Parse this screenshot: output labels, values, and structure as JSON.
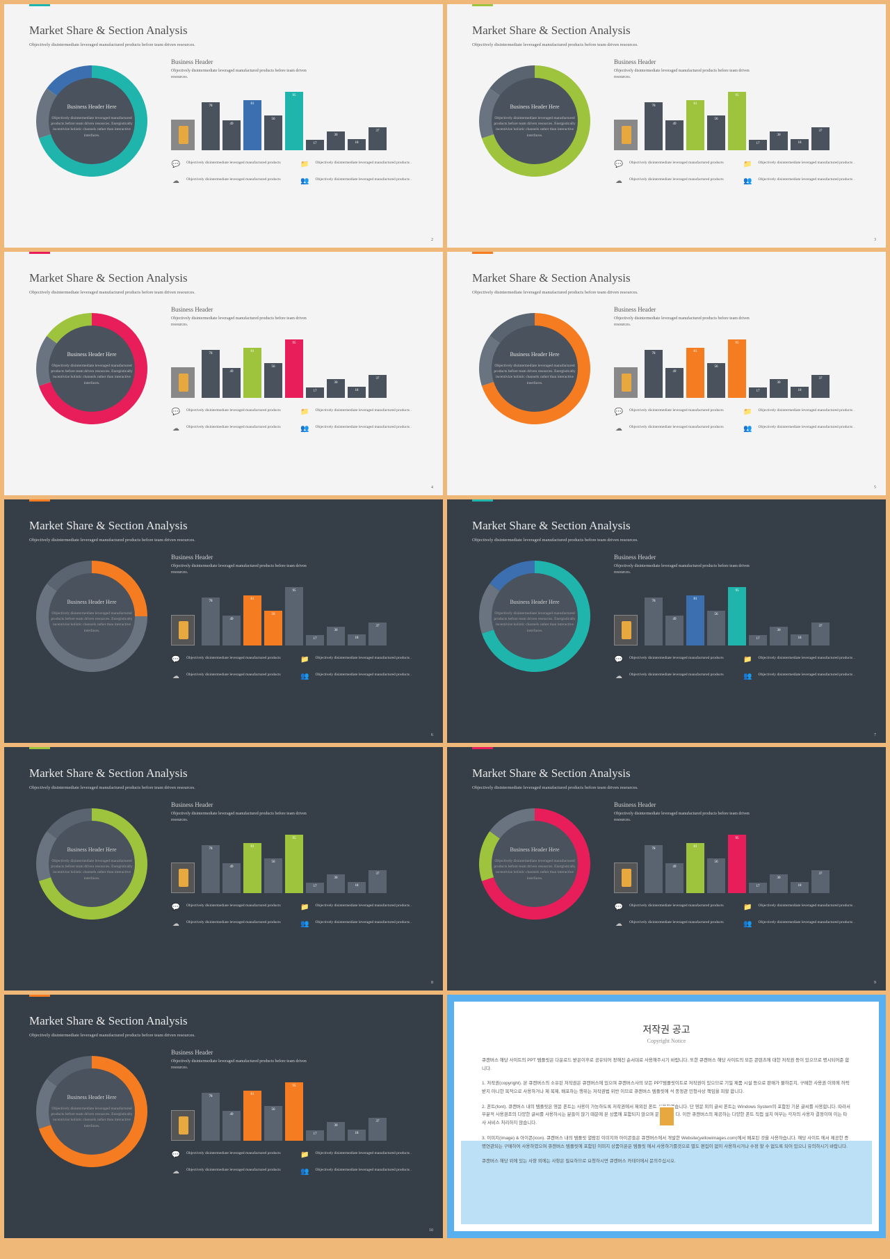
{
  "common": {
    "title": "Market Share & Section Analysis",
    "subtitle": "Objectively disintermediate leveraged manufactured products before team driven resources.",
    "business_header": "Business Header",
    "bh_sub": "Objectively disintermediate leveraged manufactured products before team driven resources.",
    "donut_title": "Business Header Here",
    "donut_text": "Objectively disintermediate leveraged manufactured products before team driven resources. Energistically incentivize holistic channels rather than interactive interfaces.",
    "feat_text": "Objectively disintermediate leveraged manufactured products",
    "feat_alt": "Objectively disintermediate leveraged manufactured products ."
  },
  "chart": {
    "labels": [
      "78",
      "49",
      "81",
      "56",
      "95",
      "17",
      "30",
      "18",
      "37"
    ],
    "values": [
      78,
      49,
      81,
      56,
      95,
      17,
      30,
      18,
      37
    ],
    "ymax": 100
  },
  "slides": [
    {
      "theme": "light",
      "accent": "#1fb5ad",
      "page": "2",
      "donut": {
        "fill": "#4a535d",
        "seg": [
          {
            "c": "#1fb5ad",
            "f": 0.7
          },
          {
            "c": "#6a7480",
            "f": 0.15
          },
          {
            "c": "#3b6fb0",
            "f": 0.15
          }
        ]
      },
      "bar_default": "#4a535d",
      "hl": [
        {
          "i": 2,
          "c": "#3b6fb0"
        },
        {
          "i": 4,
          "c": "#1fb5ad"
        }
      ]
    },
    {
      "theme": "light",
      "accent": "#9dc43c",
      "page": "3",
      "donut": {
        "fill": "#4a535d",
        "seg": [
          {
            "c": "#9dc43c",
            "f": 0.7
          },
          {
            "c": "#6a7480",
            "f": 0.15
          },
          {
            "c": "#5a6470",
            "f": 0.15
          }
        ]
      },
      "bar_default": "#4a535d",
      "hl": [
        {
          "i": 2,
          "c": "#9dc43c"
        },
        {
          "i": 4,
          "c": "#9dc43c"
        }
      ]
    },
    {
      "theme": "light",
      "accent": "#e81e5b",
      "page": "4",
      "donut": {
        "fill": "#4a535d",
        "seg": [
          {
            "c": "#e81e5b",
            "f": 0.7
          },
          {
            "c": "#6a7480",
            "f": 0.15
          },
          {
            "c": "#9dc43c",
            "f": 0.15
          }
        ]
      },
      "bar_default": "#4a535d",
      "hl": [
        {
          "i": 2,
          "c": "#9dc43c"
        },
        {
          "i": 4,
          "c": "#e81e5b"
        }
      ]
    },
    {
      "theme": "light",
      "accent": "#f57c20",
      "page": "5",
      "donut": {
        "fill": "#4a535d",
        "seg": [
          {
            "c": "#f57c20",
            "f": 0.7
          },
          {
            "c": "#6a7480",
            "f": 0.15
          },
          {
            "c": "#5a6470",
            "f": 0.15
          }
        ]
      },
      "bar_default": "#4a535d",
      "hl": [
        {
          "i": 2,
          "c": "#f57c20"
        },
        {
          "i": 4,
          "c": "#f57c20"
        }
      ]
    },
    {
      "theme": "dark",
      "accent": "#f57c20",
      "page": "6",
      "donut": {
        "fill": "#4a535d",
        "seg": [
          {
            "c": "#f57c20",
            "f": 0.25
          },
          {
            "c": "#6a7480",
            "f": 0.6
          },
          {
            "c": "#5a6470",
            "f": 0.15
          }
        ]
      },
      "bar_default": "#5a6470",
      "hl": [
        {
          "i": 2,
          "c": "#f57c20"
        },
        {
          "i": 3,
          "c": "#f57c20"
        }
      ]
    },
    {
      "theme": "dark",
      "accent": "#1fb5ad",
      "page": "7",
      "donut": {
        "fill": "#4a535d",
        "seg": [
          {
            "c": "#1fb5ad",
            "f": 0.7
          },
          {
            "c": "#6a7480",
            "f": 0.15
          },
          {
            "c": "#3b6fb0",
            "f": 0.15
          }
        ]
      },
      "bar_default": "#5a6470",
      "hl": [
        {
          "i": 2,
          "c": "#3b6fb0"
        },
        {
          "i": 4,
          "c": "#1fb5ad"
        }
      ]
    },
    {
      "theme": "dark",
      "accent": "#9dc43c",
      "page": "8",
      "donut": {
        "fill": "#4a535d",
        "seg": [
          {
            "c": "#9dc43c",
            "f": 0.7
          },
          {
            "c": "#6a7480",
            "f": 0.15
          },
          {
            "c": "#5a6470",
            "f": 0.15
          }
        ]
      },
      "bar_default": "#5a6470",
      "hl": [
        {
          "i": 2,
          "c": "#9dc43c"
        },
        {
          "i": 4,
          "c": "#9dc43c"
        }
      ]
    },
    {
      "theme": "dark",
      "accent": "#e81e5b",
      "page": "9",
      "donut": {
        "fill": "#4a535d",
        "seg": [
          {
            "c": "#e81e5b",
            "f": 0.7
          },
          {
            "c": "#9dc43c",
            "f": 0.15
          },
          {
            "c": "#6a7480",
            "f": 0.15
          }
        ]
      },
      "bar_default": "#5a6470",
      "hl": [
        {
          "i": 2,
          "c": "#9dc43c"
        },
        {
          "i": 4,
          "c": "#e81e5b"
        }
      ]
    },
    {
      "theme": "dark",
      "accent": "#f57c20",
      "page": "10",
      "donut": {
        "fill": "#4a535d",
        "seg": [
          {
            "c": "#f57c20",
            "f": 0.7
          },
          {
            "c": "#6a7480",
            "f": 0.15
          },
          {
            "c": "#5a6470",
            "f": 0.15
          }
        ]
      },
      "bar_default": "#5a6470",
      "hl": [
        {
          "i": 2,
          "c": "#f57c20"
        },
        {
          "i": 4,
          "c": "#f57c20"
        }
      ]
    }
  ],
  "copyright": {
    "title": "저작권 공고",
    "sub": "Copyright Notice",
    "p1": "큐캔버스 해당 사이트의 PPT 템플릿은 다운로드 받은이후로 공유되어 정해진 순서대로 사용해주시기 바랍니다. 또한 큐캔버스 해당 사이트의 모든 콘텐츠에 대한 저작권 등이 있으므로 명시되어준 합니다.",
    "p2": "1. 저작권(copyright). 본 큐캔버스의 소유된 저작권은 큐캔버스에 있으며 큐캔버스사의 모든 PPT템플릿이트로 저작권이 있으므로 기밀 제품 시설 등으로 판매가 불하든지, 구매한 사용권 이외에 허락받지 아니한 목적으로 사용하거나 제 복제, 배포하는 행위는 저작권법 위반 이므로 큐캔버스 템플릿에 석 종정관 민형사상 책임을 피할 합니다.",
    "p3": "2. 폰트(font). 큐캔버스 내의 템플릿은 영문 폰트는 사용이 가능하도록 저작권에서 제외된 폰트 사용하였습니다. 단 영문 외의 글씨 폰트는 Windows System의 포함된 기본 글씨를 사용합니다. 따라서 부분적 사용권조의 다양한 글씨를 사용하시는 분들이 많기 때문에 본 상품에 포함되지 않으며 문의드립니다. 이만 큐캔버스의 제공하는 다양한 폰트 직접 설치 여부는 각자의 사용자 결정이며 이는 타사 서비스 처리하지 않습니다.",
    "p4": "3. 이미지(image) & 아이콘(icon). 큐캔버스 내의 템플릿 열람된 이미지와 아이콘들은 큐캔버스에서 개발한 Website(yellowimages.com)에서 배포된 것을 사용하습니다. 해당 사이트 에서 제공한 증명연관되는 구매하여 사용하였으며 큐캔버스 템플릿에 포함된 이미지 상품이온은 템플릿 에서 사용하기를것으로 별도 편집이 없이 사용하시거나 수정 할 수 없도록 되어 있으니 유의하시기 바랍니다.",
    "p5": "큐캔버스 해당 위에 있는 사항 외에는 사항은 필요하므로 요청하시면 큐캔버스 카테이에서 문의주십시오."
  },
  "icons": [
    "💬",
    "📁",
    "☁",
    "👥"
  ]
}
